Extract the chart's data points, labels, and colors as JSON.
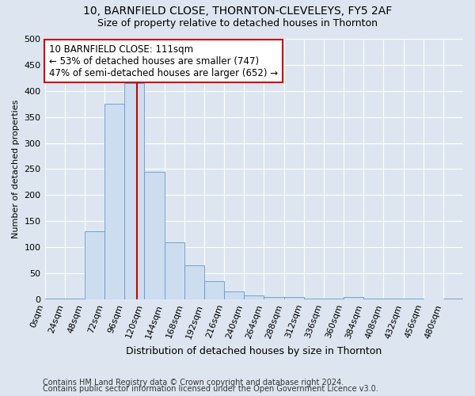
{
  "title1": "10, BARNFIELD CLOSE, THORNTON-CLEVELEYS, FY5 2AF",
  "title2": "Size of property relative to detached houses in Thornton",
  "xlabel": "Distribution of detached houses by size in Thornton",
  "ylabel": "Number of detached properties",
  "footer1": "Contains HM Land Registry data © Crown copyright and database right 2024.",
  "footer2": "Contains public sector information licensed under the Open Government Licence v3.0.",
  "bin_edges": [
    0,
    24,
    48,
    72,
    96,
    120,
    144,
    168,
    192,
    216,
    240,
    264,
    288,
    312,
    336,
    360,
    384,
    408,
    432,
    456,
    480,
    504
  ],
  "bar_heights": [
    2,
    2,
    130,
    375,
    415,
    245,
    110,
    65,
    35,
    15,
    8,
    5,
    5,
    1,
    1,
    5,
    1,
    1,
    1,
    0,
    2
  ],
  "bar_color": "#ccddf0",
  "bar_edge_color": "#6699cc",
  "property_size": 111,
  "vline_color": "#cc0000",
  "annotation_text": "10 BARNFIELD CLOSE: 111sqm\n← 53% of detached houses are smaller (747)\n47% of semi-detached houses are larger (652) →",
  "annotation_box_color": "white",
  "annotation_box_edge_color": "#cc0000",
  "ylim": [
    0,
    500
  ],
  "xlim": [
    0,
    504
  ],
  "background_color": "#dde6f0",
  "plot_bg_color": "#dde6f0",
  "grid_color": "white",
  "tick_label_size": 8,
  "title1_fontsize": 10,
  "title2_fontsize": 9,
  "xlabel_fontsize": 9,
  "ylabel_fontsize": 8,
  "annotation_fontsize": 8.5,
  "footer_fontsize": 7
}
